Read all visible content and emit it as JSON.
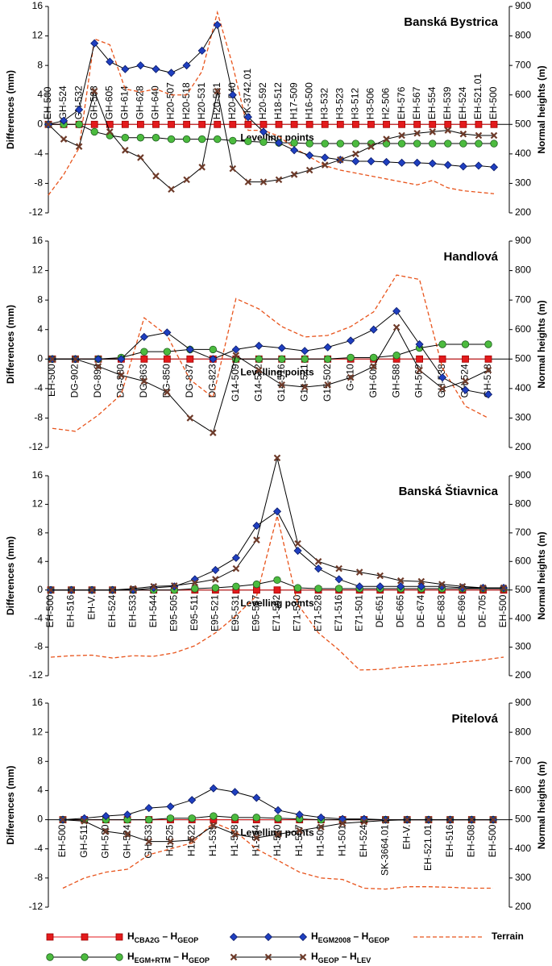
{
  "chart_data": [
    {
      "type": "line",
      "title": "Banská Bystrica",
      "xlabel": "Levelling points",
      "ylabel": "Differences (mm)",
      "y2label": "Normal heights (m)",
      "xtick_side": "above",
      "categories": [
        "EH-500",
        "GH-524",
        "GH-532",
        "GH-588",
        "GH-605",
        "GH-614",
        "GH-628",
        "GH-640",
        "H20-507",
        "H20-518",
        "H20-531",
        "H20-551",
        "H20-540",
        "SK-3742.01",
        "H20-592",
        "H18-512",
        "H17-509",
        "H16-500",
        "H3-532",
        "H3-523",
        "H3-512",
        "H3-506",
        "H2-506",
        "EH-576",
        "EH-567",
        "EH-554",
        "EH-539",
        "EH-524",
        "EH-521.01",
        "EH-500"
      ],
      "ylim": [
        -12,
        16
      ],
      "yticks": [
        -12,
        -8,
        -4,
        0,
        4,
        8,
        12,
        16
      ],
      "y2lim": [
        200,
        900
      ],
      "y2ticks": [
        200,
        300,
        400,
        500,
        600,
        700,
        800,
        900
      ],
      "series": [
        {
          "name": "HCBA2G – HGEOP",
          "color": "#e31a1c",
          "line": "#e31a1c",
          "marker": "square",
          "values": [
            0,
            0,
            0,
            0,
            0,
            0,
            0,
            0,
            0,
            0,
            0,
            0,
            0,
            0,
            0,
            0,
            0,
            0,
            0,
            0,
            0,
            0,
            0,
            0,
            0,
            0,
            0,
            0,
            0,
            0
          ]
        },
        {
          "name": "HEGM+RTM – HGEOP",
          "color": "#4cbb3f",
          "line": "#000000",
          "marker": "circle",
          "values": [
            0,
            0,
            0,
            -1,
            -1.5,
            -1.8,
            -1.8,
            -1.8,
            -2,
            -2,
            -2,
            -2,
            -2.2,
            -2.3,
            -2.4,
            -2.5,
            -2.5,
            -2.6,
            -2.6,
            -2.6,
            -2.6,
            -2.6,
            -2.6,
            -2.6,
            -2.6,
            -2.6,
            -2.6,
            -2.6,
            -2.6,
            -2.6
          ]
        },
        {
          "name": "HEGM2008 – HGEOP",
          "color": "#1f3fbf",
          "line": "#000000",
          "marker": "diamond",
          "values": [
            0,
            0.5,
            2,
            11,
            8.5,
            7.5,
            8,
            7.5,
            7,
            8,
            10,
            13.5,
            4,
            1,
            -1,
            -2.5,
            -3.5,
            -4.2,
            -4.5,
            -4.8,
            -5,
            -5,
            -5.1,
            -5.2,
            -5.2,
            -5.3,
            -5.5,
            -5.7,
            -5.6,
            -5.8
          ]
        },
        {
          "name": "HGEOP – HLEV",
          "color": "#6e3b2a",
          "line": "#000000",
          "marker": "x",
          "values": [
            0,
            -2,
            -3,
            4.5,
            -1,
            -3.5,
            -4.5,
            -7,
            -8.8,
            -7.5,
            -5.8,
            4.5,
            -6,
            -7.8,
            -7.8,
            -7.5,
            -6.8,
            -6.2,
            -5.5,
            -4.8,
            -4,
            -3,
            -2,
            -1.5,
            -1.2,
            -1,
            -0.8,
            -1.3,
            -1.5,
            -1.5
          ]
        },
        {
          "name": "Terrain",
          "color": "#e8541c",
          "line": "#e8541c",
          "marker": "none",
          "dashed": true,
          "axis": "y2",
          "values": [
            260,
            330,
            420,
            790,
            770,
            620,
            610,
            620,
            600,
            600,
            680,
            880,
            700,
            480,
            480,
            460,
            420,
            390,
            360,
            345,
            335,
            325,
            315,
            305,
            295,
            310,
            285,
            275,
            270,
            265
          ]
        }
      ]
    },
    {
      "type": "line",
      "title": "Handlová",
      "xlabel": "Levelling points",
      "ylabel": "Differences (mm)",
      "y2label": "Normal heights (m)",
      "xtick_side": "below",
      "categories": [
        "EH-500",
        "DG-902",
        "DG-896",
        "DG-880",
        "DG-863",
        "DG-850",
        "DG-837",
        "DG-823",
        "G14-509",
        "G14-532",
        "G14-516",
        "G14-521",
        "G15-502",
        "G-610",
        "GH-600",
        "GH-588",
        "GH-562",
        "GH-538",
        "GH-524",
        "GH-518"
      ],
      "ylim": [
        -12,
        16
      ],
      "yticks": [
        -12,
        -8,
        -4,
        0,
        4,
        8,
        12,
        16
      ],
      "y2lim": [
        200,
        900
      ],
      "y2ticks": [
        200,
        300,
        400,
        500,
        600,
        700,
        800,
        900
      ],
      "series": [
        {
          "color": "#e31a1c",
          "line": "#e31a1c",
          "marker": "square",
          "values": [
            0,
            0,
            0,
            0,
            0,
            0,
            0,
            0,
            0,
            0,
            0,
            0,
            0,
            0,
            0,
            0,
            0,
            0,
            0,
            0
          ]
        },
        {
          "color": "#4cbb3f",
          "line": "#000000",
          "marker": "circle",
          "values": [
            0,
            0,
            0,
            0.2,
            1,
            1,
            1.3,
            1.3,
            0,
            0,
            0,
            0,
            0,
            0.2,
            0.2,
            0.5,
            1.5,
            2,
            2,
            2
          ]
        },
        {
          "color": "#1f3fbf",
          "line": "#000000",
          "marker": "diamond",
          "values": [
            0,
            0,
            0,
            0,
            3,
            3.6,
            1.3,
            0,
            1.3,
            1.8,
            1.5,
            1.1,
            1.6,
            2.5,
            4,
            6.5,
            2,
            -2.5,
            -4.2,
            -4.8
          ]
        },
        {
          "color": "#6e3b2a",
          "line": "#000000",
          "marker": "x",
          "values": [
            0,
            0,
            -1,
            -2.2,
            -3,
            -4.5,
            -8,
            -10,
            0.5,
            -1.5,
            -3.5,
            -3.8,
            -3.5,
            -2.5,
            -1,
            4.3,
            -1.5,
            -4,
            -3,
            -1.5
          ]
        },
        {
          "color": "#e8541c",
          "line": "#e8541c",
          "marker": "none",
          "dashed": true,
          "axis": "y2",
          "values": [
            265,
            255,
            310,
            380,
            640,
            580,
            430,
            370,
            705,
            670,
            610,
            575,
            580,
            610,
            660,
            785,
            770,
            470,
            340,
            300
          ]
        }
      ]
    },
    {
      "type": "line",
      "title": "Banská Štiavnica",
      "xlabel": "Levelling points",
      "ylabel": "Differences (mm)",
      "y2label": "Normal heights (m)",
      "xtick_side": "below",
      "categories": [
        "EH-500",
        "EH-516",
        "EH-V.",
        "EH-524",
        "EH-533",
        "EH-544",
        "E95-505",
        "E95-511",
        "E95-521",
        "E95-531",
        "E95-547",
        "E71-562",
        "E71-540",
        "E71-528",
        "E71-516",
        "E71-501",
        "DE-651",
        "DE-665",
        "DE-674",
        "DE-683",
        "DE-696",
        "DE-705",
        "EH-500"
      ],
      "ylim": [
        -12,
        16
      ],
      "yticks": [
        -12,
        -8,
        -4,
        0,
        4,
        8,
        12,
        16
      ],
      "y2lim": [
        200,
        900
      ],
      "y2ticks": [
        200,
        300,
        400,
        500,
        600,
        700,
        800,
        900
      ],
      "series": [
        {
          "color": "#e31a1c",
          "line": "#e31a1c",
          "marker": "square",
          "values": [
            0,
            0,
            0,
            0,
            0,
            0,
            0,
            0,
            0,
            0,
            0,
            0,
            0,
            0,
            0,
            0,
            0,
            0,
            0,
            0,
            0,
            0,
            0
          ]
        },
        {
          "color": "#4cbb3f",
          "line": "#000000",
          "marker": "circle",
          "values": [
            0,
            0,
            0,
            0,
            0,
            0,
            0,
            0.2,
            0.3,
            0.5,
            0.8,
            1.4,
            0.3,
            0.2,
            0.2,
            0.2,
            0.2,
            0.2,
            0.2,
            0.2,
            0.2,
            0.2,
            0.2
          ]
        },
        {
          "color": "#1f3fbf",
          "line": "#000000",
          "marker": "diamond",
          "values": [
            0,
            0,
            0,
            0,
            0,
            0.3,
            0.5,
            1.5,
            2.8,
            4.5,
            9,
            11,
            5.5,
            3,
            1.5,
            0.5,
            0.5,
            0.5,
            0.5,
            0.5,
            0.3,
            0.3,
            0.3
          ]
        },
        {
          "color": "#6e3b2a",
          "line": "#000000",
          "marker": "x",
          "values": [
            0,
            0,
            0,
            0,
            0.2,
            0.5,
            0.6,
            1,
            1.5,
            3,
            7,
            18.5,
            6.5,
            4,
            3,
            2.5,
            2,
            1.3,
            1.2,
            0.8,
            0.5,
            0.3,
            0.3
          ]
        },
        {
          "color": "#e8541c",
          "line": "#e8541c",
          "marker": "none",
          "dashed": true,
          "axis": "y2",
          "values": [
            265,
            270,
            272,
            262,
            270,
            268,
            280,
            305,
            350,
            410,
            480,
            760,
            450,
            350,
            290,
            220,
            222,
            230,
            235,
            240,
            248,
            255,
            265
          ]
        }
      ]
    },
    {
      "type": "line",
      "title": "Pitelová",
      "xlabel": "Levelling points",
      "ylabel": "Differences (mm)",
      "y2label": "Normal heights (m)",
      "xtick_side": "below",
      "categories": [
        "EH-500",
        "GH-511",
        "GH-520",
        "GH-524",
        "GH-533",
        "H1-525",
        "H1-522",
        "H1-539",
        "H1-538",
        "H1-544",
        "H1-530",
        "H1-507",
        "H1-503",
        "H1-501",
        "EH-524",
        "SK-3664.01",
        "EH-V.",
        "EH-521.01",
        "EH-516",
        "EH-508",
        "EH-500"
      ],
      "ylim": [
        -12,
        16
      ],
      "yticks": [
        -12,
        -8,
        -4,
        0,
        4,
        8,
        12,
        16
      ],
      "y2lim": [
        200,
        900
      ],
      "y2ticks": [
        200,
        300,
        400,
        500,
        600,
        700,
        800,
        900
      ],
      "series": [
        {
          "color": "#e31a1c",
          "line": "#e31a1c",
          "marker": "square",
          "values": [
            0,
            0,
            0,
            0,
            0,
            0,
            0,
            0,
            0,
            0,
            0,
            0,
            0,
            0,
            0,
            0,
            0,
            0,
            0,
            0,
            0
          ]
        },
        {
          "color": "#4cbb3f",
          "line": "#000000",
          "marker": "circle",
          "values": [
            0,
            0,
            0,
            0,
            0,
            0.2,
            0.2,
            0.5,
            0.3,
            0.3,
            0.2,
            0.1,
            0,
            0,
            0,
            0,
            0,
            0,
            0,
            0,
            0
          ]
        },
        {
          "color": "#1f3fbf",
          "line": "#000000",
          "marker": "diamond",
          "values": [
            0,
            0.2,
            0.5,
            0.7,
            1.6,
            1.8,
            2.7,
            4.3,
            3.8,
            3,
            1.3,
            0.7,
            0.3,
            0.1,
            0.1,
            0,
            0,
            0,
            0,
            0,
            0
          ]
        },
        {
          "color": "#6e3b2a",
          "line": "#000000",
          "marker": "x",
          "values": [
            0,
            -0.2,
            -1.6,
            -2,
            -3,
            -3,
            -2.8,
            -0.8,
            -2,
            -2.5,
            -2,
            -1.5,
            -1,
            -0.5,
            -0.3,
            -0.1,
            0,
            0,
            0,
            0,
            0
          ]
        },
        {
          "color": "#e8541c",
          "line": "#e8541c",
          "marker": "none",
          "dashed": true,
          "axis": "y2",
          "values": [
            265,
            300,
            320,
            330,
            380,
            400,
            420,
            490,
            460,
            400,
            360,
            320,
            300,
            295,
            265,
            262,
            270,
            270,
            268,
            265,
            265
          ]
        }
      ]
    }
  ]
}
